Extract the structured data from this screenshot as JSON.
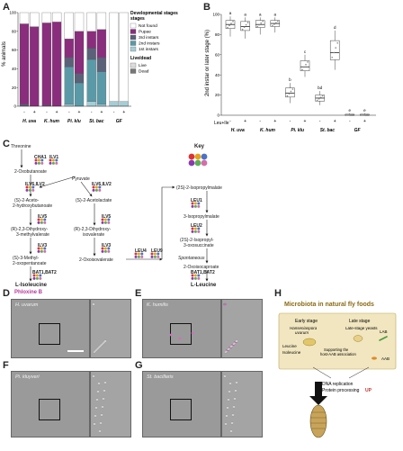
{
  "panels": {
    "A": "A",
    "B": "B",
    "C": "C",
    "D": "D",
    "E": "E",
    "F": "F",
    "G": "G",
    "H": "H"
  },
  "chartA": {
    "ylabel": "% animals",
    "yticks": [
      "0",
      "20",
      "40",
      "60",
      "80",
      "100"
    ],
    "leucine_row": [
      "-",
      "+",
      "-",
      "+",
      "-",
      "+",
      "-",
      "+",
      "-",
      "+"
    ],
    "groups": [
      "H. uva",
      "K. hum",
      "Pi. klu",
      "St. bac",
      "GF"
    ],
    "legend_title": "Developmental stages",
    "legend": [
      {
        "label": "Not found",
        "color": "#ffffff"
      },
      {
        "label": "Pupae",
        "color": "#8a2d7d"
      },
      {
        "label": "3rd instars",
        "color": "#5a6178"
      },
      {
        "label": "2nd instars",
        "color": "#5a9aa8"
      },
      {
        "label": "1st instars",
        "color": "#a5cdd6"
      }
    ],
    "legend2_title": "Live/dead",
    "legend2": [
      {
        "label": "Live",
        "color": "#dddddd"
      },
      {
        "label": "Dead",
        "color": "#777777"
      }
    ]
  },
  "chartB": {
    "ylabel": "2nd instar or later stage (%)",
    "yticks": [
      "0",
      "20",
      "40",
      "60",
      "80",
      "100"
    ],
    "row_label": "Leu+Ile",
    "signs": [
      "-",
      "+",
      "-",
      "+",
      "-",
      "+",
      "-",
      "+",
      "-",
      "+"
    ],
    "groups": [
      "H. uva",
      "K. hum",
      "Pi. klu",
      "St. bac",
      "GF"
    ],
    "letters": [
      "a",
      "a",
      "a",
      "a",
      "b",
      "c",
      "bd",
      "d",
      "e",
      "e"
    ]
  },
  "chart_data": [
    {
      "type": "bar",
      "stacked": true,
      "ylabel": "% animals",
      "ylim": [
        0,
        100
      ],
      "categories": [
        "H. uva -",
        "H. uva +",
        "K. hum -",
        "K. hum +",
        "Pi. klu -",
        "Pi. klu +",
        "St. bac -",
        "St. bac +",
        "GF -",
        "GF +"
      ],
      "series": [
        {
          "name": "1st instars",
          "values": [
            0,
            0,
            0,
            0,
            2,
            0,
            5,
            2,
            5,
            5
          ]
        },
        {
          "name": "2nd instars",
          "values": [
            0,
            0,
            0,
            0,
            40,
            25,
            45,
            35,
            0,
            0
          ]
        },
        {
          "name": "3rd instars",
          "values": [
            2,
            0,
            1,
            0,
            10,
            10,
            12,
            15,
            0,
            0
          ]
        },
        {
          "name": "Pupae",
          "values": [
            86,
            85,
            88,
            90,
            20,
            45,
            18,
            30,
            0,
            0
          ]
        },
        {
          "name": "Not found",
          "values": [
            12,
            15,
            11,
            10,
            28,
            20,
            20,
            18,
            95,
            95
          ]
        }
      ]
    },
    {
      "type": "box",
      "ylabel": "2nd instar or later stage (%)",
      "ylim": [
        0,
        100
      ],
      "categories": [
        "H. uva -",
        "H. uva +",
        "K. hum -",
        "K. hum +",
        "Pi. klu -",
        "Pi. klu +",
        "St. bac -",
        "St. bac +",
        "GF -",
        "GF +"
      ],
      "boxes": [
        {
          "min": 78,
          "q1": 86,
          "median": 90,
          "q3": 94,
          "max": 98
        },
        {
          "min": 76,
          "q1": 84,
          "median": 88,
          "q3": 93,
          "max": 97
        },
        {
          "min": 80,
          "q1": 87,
          "median": 90,
          "q3": 94,
          "max": 97
        },
        {
          "min": 82,
          "q1": 88,
          "median": 91,
          "q3": 94,
          "max": 97
        },
        {
          "min": 12,
          "q1": 18,
          "median": 22,
          "q3": 27,
          "max": 32
        },
        {
          "min": 38,
          "q1": 44,
          "median": 48,
          "q3": 54,
          "max": 60
        },
        {
          "min": 10,
          "q1": 14,
          "median": 17,
          "q3": 20,
          "max": 24
        },
        {
          "min": 45,
          "q1": 55,
          "median": 62,
          "q3": 74,
          "max": 84
        },
        {
          "min": 0,
          "q1": 0,
          "median": 0,
          "q3": 1,
          "max": 2
        },
        {
          "min": 0,
          "q1": 0,
          "median": 0,
          "q3": 1,
          "max": 2
        }
      ]
    }
  ],
  "pathway": {
    "threonine": "Threonine",
    "cha1": "CHA1",
    "ilv1": "ILV1",
    "oxobutanoate": "2-Oxobutanoate",
    "pyruvate": "Pyruvate",
    "ilv6ilv2a": "ILV6,ILV2",
    "ilv6ilv2b": "ILV6,ILV2",
    "acetohydroxy": "(S)-2-Aceto-\n2-hydroxybutanoate",
    "acetolactate": "(S)-2-Acetolactate",
    "ilv5a": "ILV5",
    "ilv5b": "ILV5",
    "dihydroxy_methyl": "(R)-2,3-Dihydroxy-\n3-methylvalerate",
    "dihydroxy_iso": "(R)-2,3-Dihydroxy-\nisovalerate",
    "ilv3a": "ILV3",
    "ilv3b": "ILV3",
    "methyloxo": "(S)-3-Methyl-\n2-oxopentanoate",
    "oxoisovalerate": "2-Oxoisovalerate",
    "leu4": "LEU4",
    "leu9": "LEU9",
    "bat1bat2a": "BAT1,BAT2",
    "bat1bat2b": "BAT1,BAT2",
    "isoleucine": "L-Isoleucine",
    "leucine": "L-Leucine",
    "isopropylmalate": "(2S)-2-Isopropylmalate",
    "leu1": "LEU1",
    "isopropylmalate3": "3-Isopropylmalate",
    "leu2": "LEU2",
    "isopropyl_oxo": "(2S)-2-Isopropyl-\n3-oxosuccinate",
    "spontaneous": "Spontaneous",
    "oxoisocaproate": "2-Oxoisocaproate",
    "key": "Key"
  },
  "micro": {
    "stain": "Phloxine B",
    "d": "H. uvarum",
    "e": "K. humilis",
    "f": "Pi. kluyveri",
    "g": "St. bacillaris"
  },
  "schematic": {
    "title": "Microbiota in natural fly foods",
    "early": "Early stage",
    "late": "Late stage",
    "hanseniaspora": "Hanseniaspora\nuvarum",
    "late_yeasts": "Late-stage yeasts",
    "lab": "LAB",
    "aab": "AAB",
    "leucine": "Leucine",
    "isoleucine": "Isoleucine",
    "support": "Supporting the\nhost-AAB association",
    "dna": "DNA replication",
    "protein": "Protein processing",
    "up": "UP"
  },
  "colors": {
    "pupae": "#8a2d7d",
    "third": "#5a6178",
    "second": "#5a9aa8",
    "first": "#a5cdd6",
    "schem_bg": "#f1e6bf",
    "title": "#8a6a12",
    "up": "#c0342c",
    "lab": "#4a9a3a",
    "aab": "#e08a2a"
  }
}
